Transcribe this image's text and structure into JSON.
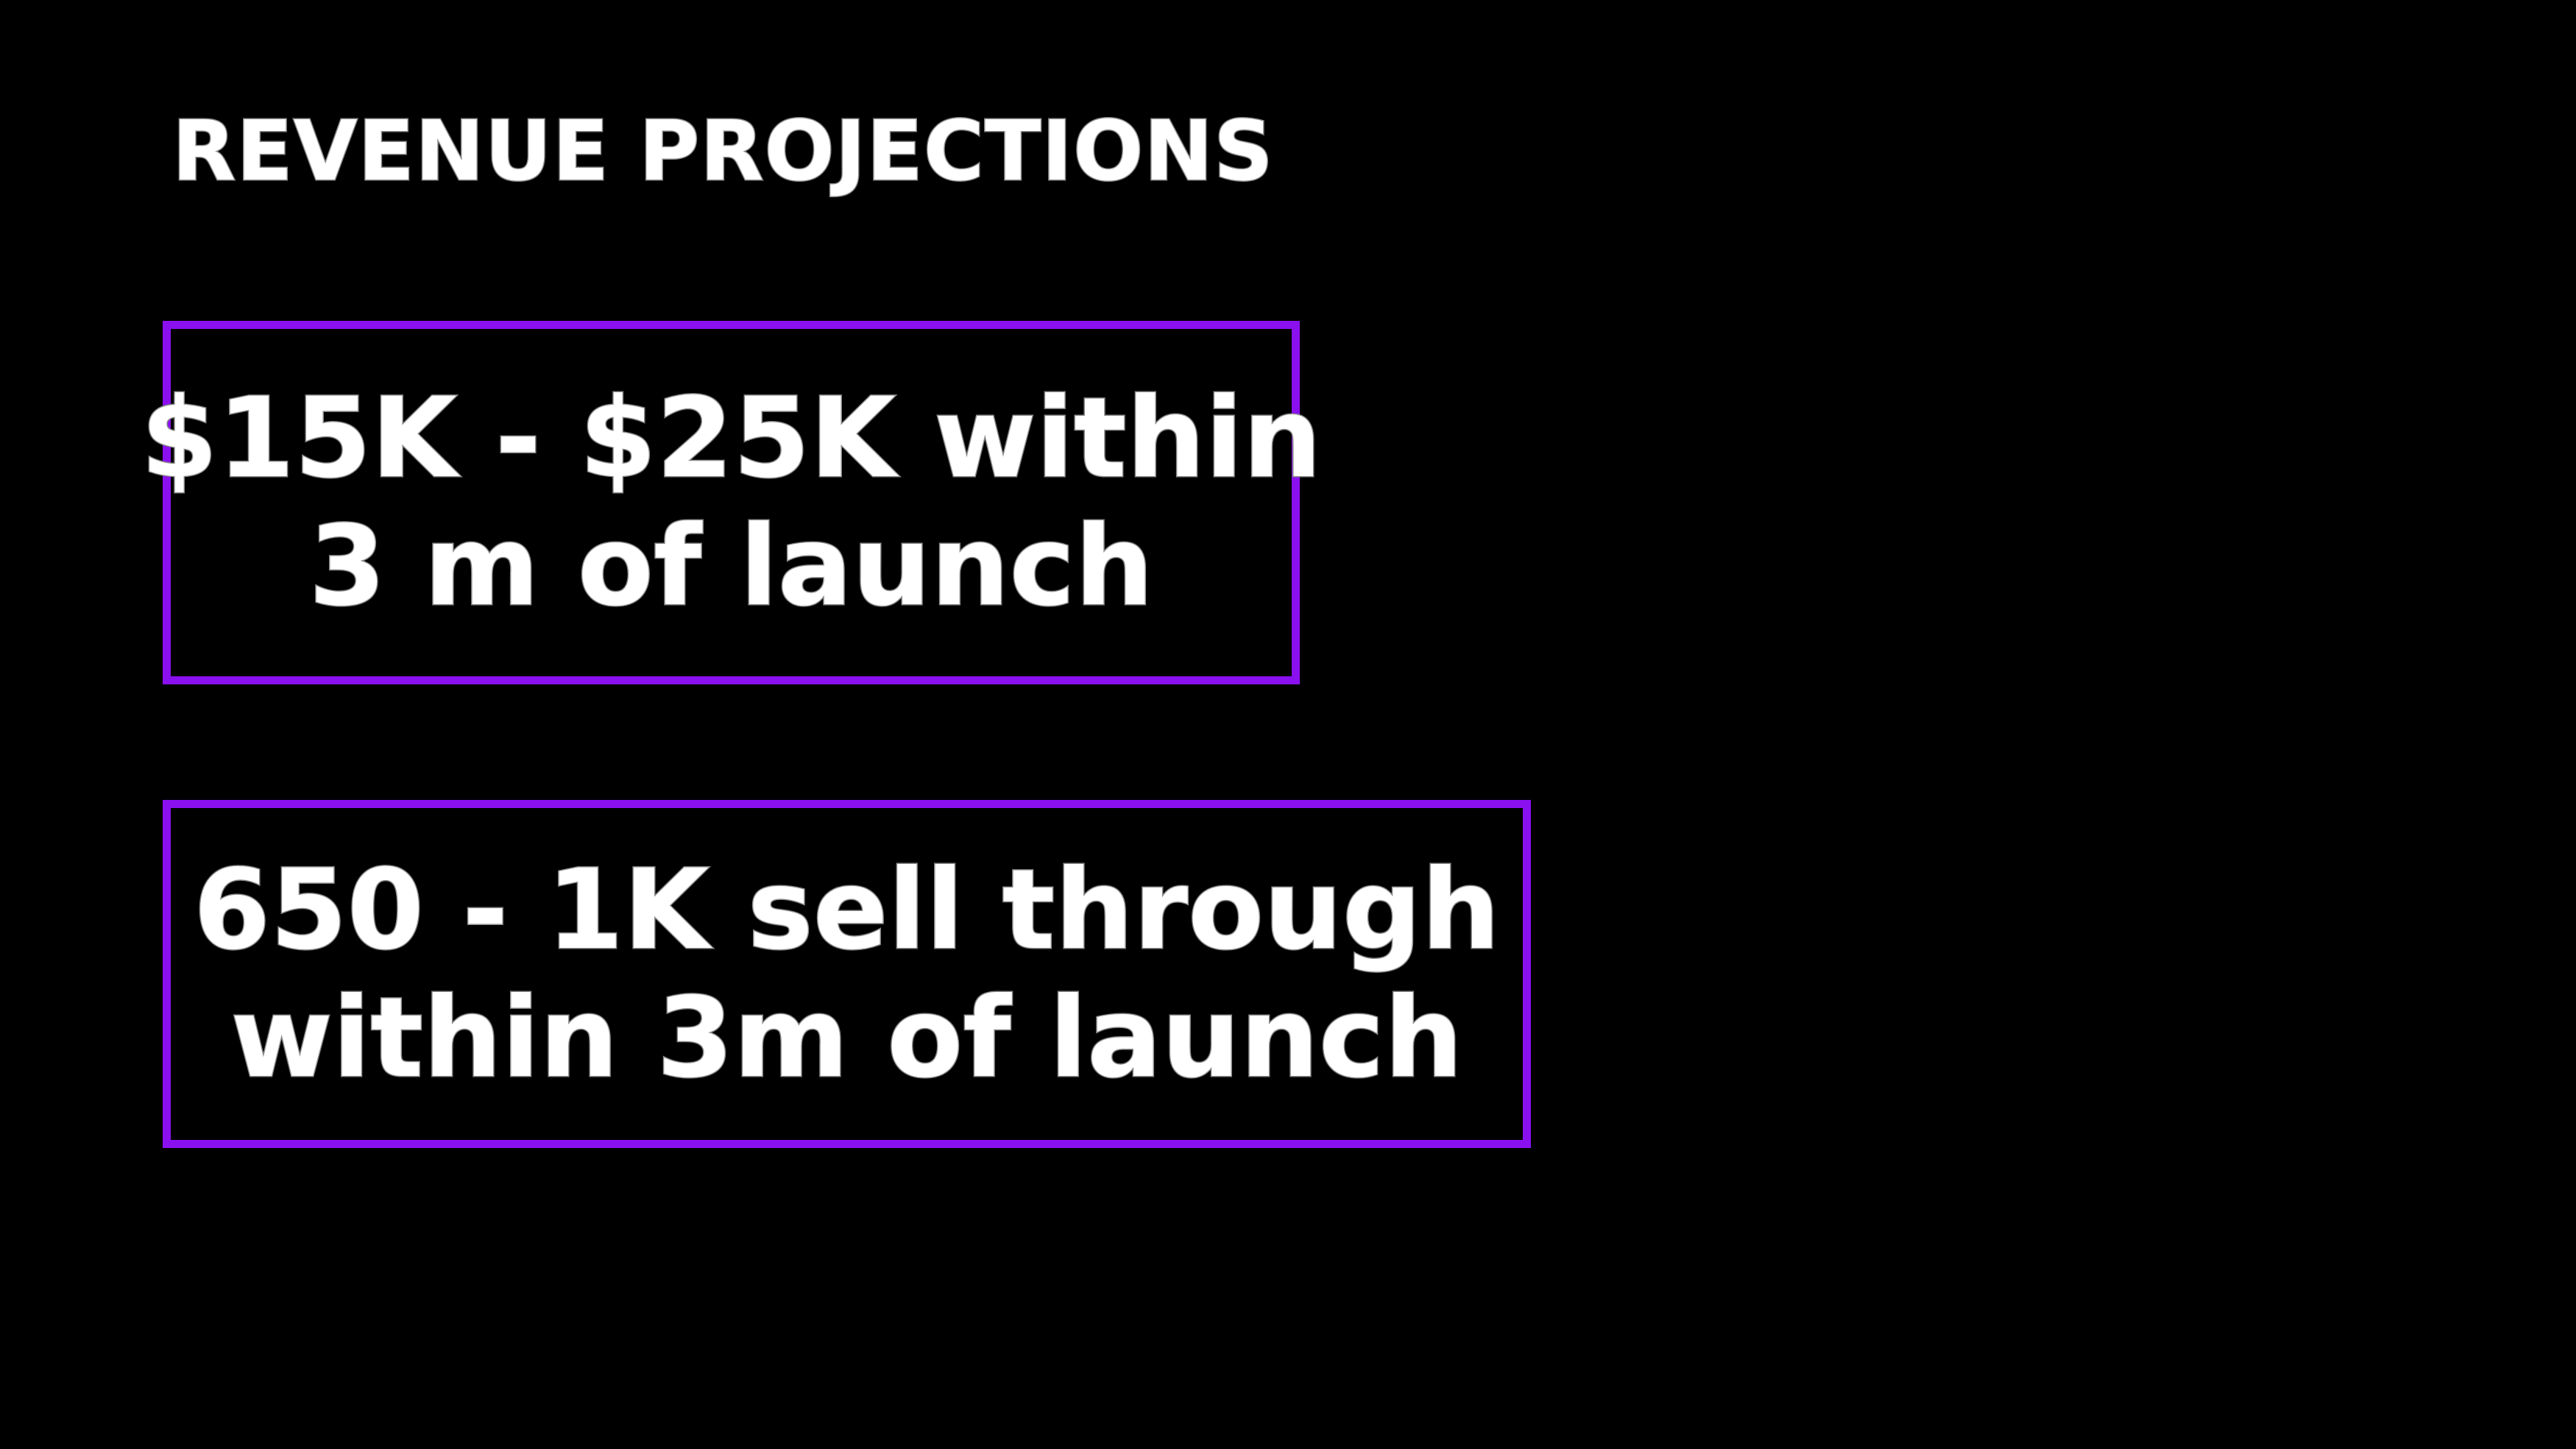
{
  "slide": {
    "title": "REVENUE PROJECTIONS",
    "boxes": [
      {
        "line1": "$15K - $25K within",
        "line2": "3 m of launch"
      },
      {
        "line1": "650 - 1K sell through",
        "line2": "within 3m of launch"
      }
    ]
  },
  "colors": {
    "background": "#000000",
    "text": "#ffffff",
    "box_border": "#8b10f0"
  }
}
